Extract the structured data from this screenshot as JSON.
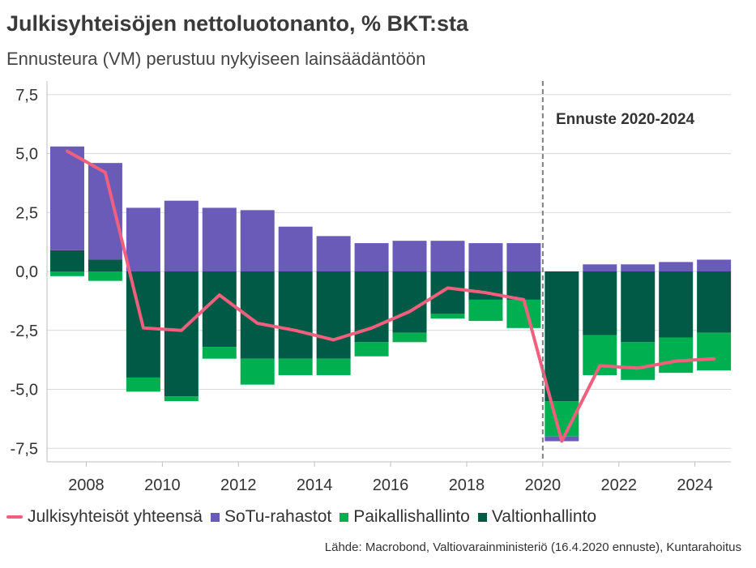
{
  "title": "Julkisyhteisöjen nettoluotonanto, % BKT:sta",
  "subtitle": "Ennusteura (VM) perustuu nykyiseen lainsäädäntöön",
  "source": "Lähde: Macrobond, Valtiovarainministeriö (16.4.2020 ennuste), Kuntarahoitus",
  "forecast_label": "Ennuste 2020-2024",
  "colors": {
    "total": "#f0607e",
    "sotu": "#6a5bb8",
    "paikallis": "#00b050",
    "valtio": "#005a45",
    "grid": "#d9d9d9",
    "forecast_line": "#7f7f7f"
  },
  "legend": [
    {
      "key": "total",
      "label": "Julkisyhteisöt yhteensä",
      "kind": "line"
    },
    {
      "key": "sotu",
      "label": "SoTu-rahastot",
      "kind": "box"
    },
    {
      "key": "paikallis",
      "label": "Paikallishallinto",
      "kind": "box"
    },
    {
      "key": "valtio",
      "label": "Valtionhallinto",
      "kind": "box"
    }
  ],
  "chart_data": {
    "type": "bar",
    "stacked": true,
    "title": "Julkisyhteisöjen nettoluotonanto, % BKT:sta",
    "subtitle": "Ennusteura (VM) perustuu nykyiseen lainsäädäntöön",
    "categories": [
      "2007",
      "2008",
      "2009",
      "2010",
      "2011",
      "2012",
      "2013",
      "2014",
      "2015",
      "2016",
      "2017",
      "2018",
      "2019",
      "2020",
      "2021",
      "2022",
      "2023",
      "2024"
    ],
    "x_tick_labels": [
      "2008",
      "2010",
      "2012",
      "2014",
      "2016",
      "2018",
      "2020",
      "2022",
      "2024"
    ],
    "y_tick_labels": [
      "7,5",
      "5,0",
      "2,5",
      "0,0",
      "-2,5",
      "-5,0",
      "-7,5"
    ],
    "ylim": [
      -7.5,
      7.5
    ],
    "forecast_start": "2020",
    "series": [
      {
        "name": "Valtionhallinto",
        "key": "valtio",
        "kind": "bar",
        "values": [
          0.9,
          0.5,
          -4.5,
          -5.3,
          -3.2,
          -3.7,
          -3.7,
          -3.7,
          -3.0,
          -2.6,
          -1.8,
          -1.2,
          -1.2,
          -5.5,
          -2.7,
          -3.0,
          -2.8,
          -2.6
        ]
      },
      {
        "name": "Paikallishallinto",
        "key": "paikallis",
        "kind": "bar",
        "values": [
          -0.2,
          -0.4,
          -0.6,
          -0.2,
          -0.5,
          -1.1,
          -0.7,
          -0.7,
          -0.6,
          -0.4,
          -0.2,
          -0.9,
          -1.2,
          -1.5,
          -1.7,
          -1.6,
          -1.5,
          -1.6
        ]
      },
      {
        "name": "SoTu-rahastot",
        "key": "sotu",
        "kind": "bar",
        "values": [
          4.4,
          4.1,
          2.7,
          3.0,
          2.7,
          2.6,
          1.9,
          1.5,
          1.2,
          1.3,
          1.3,
          1.2,
          1.2,
          -0.2,
          0.3,
          0.3,
          0.4,
          0.5
        ]
      },
      {
        "name": "Julkisyhteisöt yhteensä",
        "key": "total",
        "kind": "line",
        "values": [
          5.1,
          4.2,
          -2.4,
          -2.5,
          -1.0,
          -2.2,
          -2.5,
          -2.9,
          -2.4,
          -1.7,
          -0.7,
          -0.9,
          -1.2,
          -7.2,
          -4.0,
          -4.1,
          -3.8,
          -3.7
        ]
      }
    ],
    "grid": true,
    "legend_position": "bottom"
  }
}
